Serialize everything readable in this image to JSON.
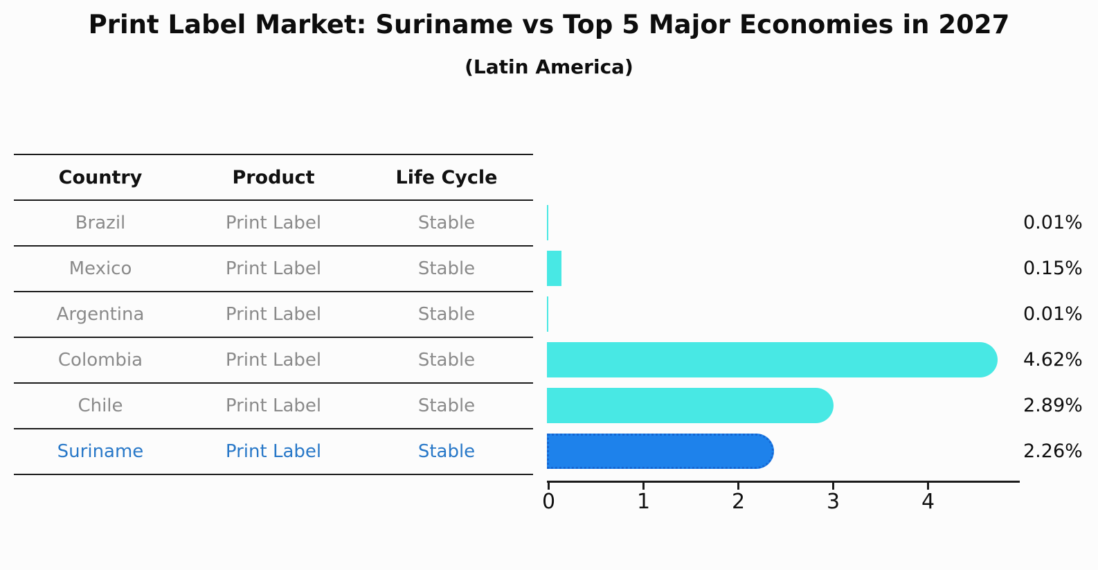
{
  "chart_data": {
    "type": "bar",
    "orientation": "horizontal",
    "title": "Print Label Market: Suriname vs Top 5 Major Economies in 2027",
    "subtitle": "(Latin America)",
    "categories": [
      "Brazil",
      "Mexico",
      "Argentina",
      "Colombia",
      "Chile",
      "Suriname"
    ],
    "values": [
      0.01,
      0.15,
      0.01,
      4.62,
      2.89,
      2.26
    ],
    "value_labels": [
      "0.01%",
      "0.15%",
      "0.01%",
      "4.62%",
      "2.89%",
      "2.26%"
    ],
    "x_ticks": [
      0,
      1,
      2,
      3,
      4
    ],
    "x_tick_labels": [
      "0",
      "1",
      "2",
      "3",
      "4"
    ],
    "xlim": [
      0,
      4.95
    ],
    "grid": false,
    "legend": false,
    "highlight_index": 5
  },
  "table": {
    "headers": [
      "Country",
      "Product",
      "Life Cycle"
    ],
    "rows": [
      {
        "country": "Brazil",
        "product": "Print Label",
        "life_cycle": "Stable"
      },
      {
        "country": "Mexico",
        "product": "Print Label",
        "life_cycle": "Stable"
      },
      {
        "country": "Argentina",
        "product": "Print Label",
        "life_cycle": "Stable"
      },
      {
        "country": "Colombia",
        "product": "Print Label",
        "life_cycle": "Stable"
      },
      {
        "country": "Chile",
        "product": "Print Label",
        "life_cycle": "Stable"
      },
      {
        "country": "Suriname",
        "product": "Print Label",
        "life_cycle": "Stable"
      }
    ]
  },
  "colors": {
    "bar_cyan": "#48E8E4",
    "bar_blue": "#1E82EB",
    "bar_blue_border": "#1465D2",
    "highlight_text": "#2878C8",
    "row_text": "#8A8A8A",
    "axis": "#1a1a1a",
    "background": "#FCFCFC"
  }
}
